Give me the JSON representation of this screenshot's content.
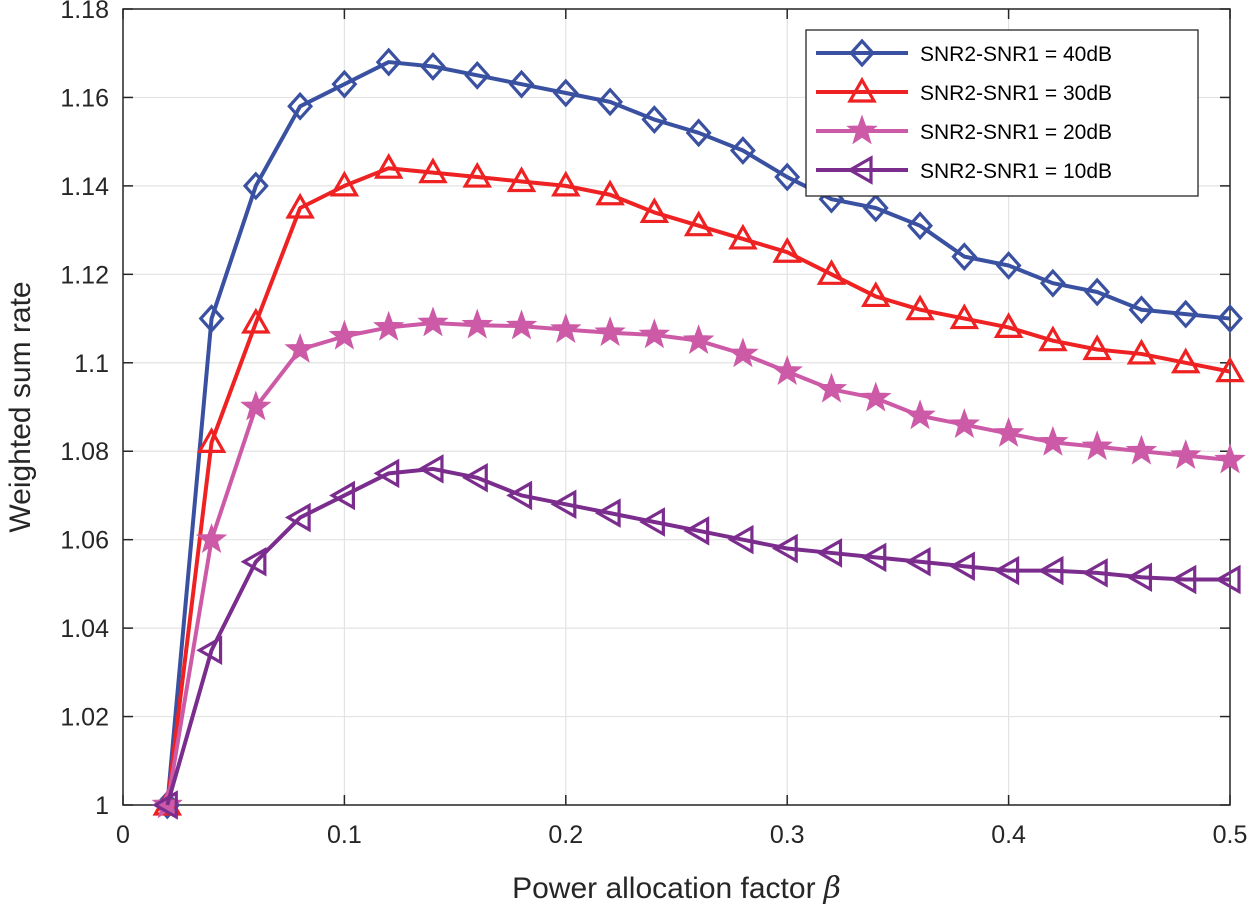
{
  "chart_data": {
    "type": "line",
    "title": "",
    "xlabel": "Power allocation factor",
    "xlabel_symbol": "β",
    "ylabel": "Weighted sum rate",
    "xlim": [
      0,
      0.5
    ],
    "ylim": [
      1,
      1.18
    ],
    "xticks": [
      0,
      0.1,
      0.2,
      0.3,
      0.4,
      0.5
    ],
    "xtick_labels": [
      "0",
      "0.1",
      "0.2",
      "0.3",
      "0.4",
      "0.5"
    ],
    "yticks": [
      1,
      1.02,
      1.04,
      1.06,
      1.08,
      1.1,
      1.12,
      1.14,
      1.16,
      1.18
    ],
    "ytick_labels": [
      "1",
      "1.02",
      "1.04",
      "1.06",
      "1.08",
      "1.1",
      "1.12",
      "1.14",
      "1.16",
      "1.18"
    ],
    "grid": true,
    "legend_position": "top-right",
    "x": [
      0.02,
      0.04,
      0.06,
      0.08,
      0.1,
      0.12,
      0.14,
      0.16,
      0.18,
      0.2,
      0.22,
      0.24,
      0.26,
      0.28,
      0.3,
      0.32,
      0.34,
      0.36,
      0.38,
      0.4,
      0.42,
      0.44,
      0.46,
      0.48,
      0.5
    ],
    "series": [
      {
        "name": "SNR2-SNR1 = 40dB",
        "color": "#3a50a1",
        "marker": "diamond",
        "values": [
          1.0,
          1.11,
          1.14,
          1.158,
          1.163,
          1.168,
          1.167,
          1.165,
          1.163,
          1.161,
          1.159,
          1.155,
          1.152,
          1.148,
          1.142,
          1.137,
          1.135,
          1.131,
          1.124,
          1.122,
          1.118,
          1.116,
          1.112,
          1.111,
          1.11
        ]
      },
      {
        "name": "SNR2-SNR1 = 30dB",
        "color": "#ee2222",
        "marker": "triangle-up",
        "values": [
          1.0,
          1.082,
          1.109,
          1.135,
          1.14,
          1.144,
          1.143,
          1.142,
          1.141,
          1.14,
          1.138,
          1.134,
          1.131,
          1.128,
          1.125,
          1.12,
          1.115,
          1.112,
          1.11,
          1.108,
          1.105,
          1.103,
          1.102,
          1.1,
          1.098
        ]
      },
      {
        "name": "SNR2-SNR1 = 20dB",
        "color": "#cc5aa6",
        "marker": "star",
        "values": [
          1.0,
          1.06,
          1.09,
          1.103,
          1.106,
          1.108,
          1.109,
          1.1085,
          1.1083,
          1.1075,
          1.1068,
          1.1063,
          1.105,
          1.102,
          1.098,
          1.094,
          1.092,
          1.088,
          1.086,
          1.084,
          1.082,
          1.081,
          1.08,
          1.079,
          1.078
        ]
      },
      {
        "name": "SNR2-SNR1 = 10dB",
        "color": "#7b2d8e",
        "marker": "triangle-left",
        "values": [
          1.0,
          1.035,
          1.055,
          1.065,
          1.07,
          1.075,
          1.076,
          1.074,
          1.07,
          1.068,
          1.066,
          1.064,
          1.062,
          1.06,
          1.058,
          1.057,
          1.056,
          1.055,
          1.054,
          1.053,
          1.053,
          1.0525,
          1.0515,
          1.051,
          1.051
        ]
      }
    ]
  }
}
